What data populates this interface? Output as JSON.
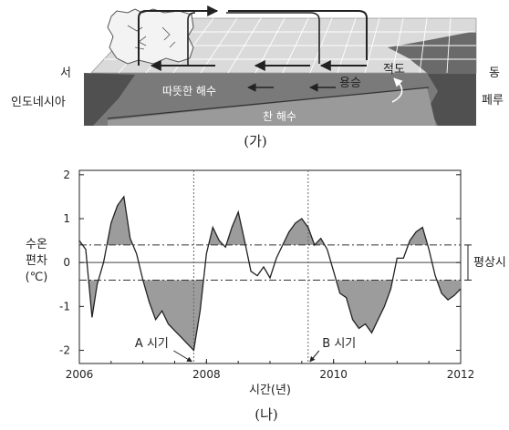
{
  "diagram": {
    "label_west": "서",
    "label_east": "동",
    "label_indonesia": "인도네시아",
    "label_peru": "페루",
    "label_equator": "적도",
    "label_upwelling": "용승",
    "label_warm_water": "따뜻한 해수",
    "label_cold_water": "찬 해수",
    "caption": "(가)"
  },
  "chart_data": {
    "type": "line",
    "x_label": "시간(년)",
    "y_label_lines": [
      "수온",
      "편차",
      "(℃)"
    ],
    "x_ticks": [
      "2006",
      "2008",
      "2010",
      "2012"
    ],
    "y_ticks": [
      "2",
      "1",
      "0",
      "-1",
      "-2"
    ],
    "xlim": [
      2006,
      2012
    ],
    "ylim": [
      -2.3,
      2.1
    ],
    "normal_band": [
      -0.4,
      0.4
    ],
    "normal_label": "평상시",
    "marker_a": {
      "x": 2007.8,
      "label": "A 시기"
    },
    "marker_b": {
      "x": 2009.6,
      "label": "B 시기"
    },
    "series": [
      {
        "x": [
          2006.0,
          2006.1,
          2006.2,
          2006.28,
          2006.38,
          2006.5,
          2006.6,
          2006.7,
          2006.8,
          2006.9,
          2007.0,
          2007.1,
          2007.2,
          2007.3,
          2007.4,
          2007.5,
          2007.6,
          2007.7,
          2007.8,
          2007.9,
          2008.0,
          2008.1,
          2008.2,
          2008.3,
          2008.4,
          2008.5,
          2008.6,
          2008.7,
          2008.8,
          2008.9,
          2009.0,
          2009.1,
          2009.2,
          2009.3,
          2009.4,
          2009.5,
          2009.6,
          2009.7,
          2009.8,
          2009.9,
          2010.0,
          2010.1,
          2010.2,
          2010.3,
          2010.4,
          2010.5,
          2010.6,
          2010.7,
          2010.8,
          2010.9,
          2011.0,
          2011.1,
          2011.2,
          2011.3,
          2011.4,
          2011.5,
          2011.6,
          2011.7,
          2011.8,
          2011.9,
          2012.0
        ],
        "y": [
          0.5,
          0.3,
          -1.25,
          -0.5,
          0.0,
          0.9,
          1.3,
          1.5,
          0.55,
          0.2,
          -0.4,
          -0.9,
          -1.3,
          -1.1,
          -1.4,
          -1.55,
          -1.7,
          -1.85,
          -2.0,
          -1.1,
          0.2,
          0.8,
          0.5,
          0.35,
          0.8,
          1.15,
          0.5,
          -0.2,
          -0.3,
          -0.1,
          -0.35,
          0.1,
          0.4,
          0.7,
          0.9,
          1.0,
          0.8,
          0.4,
          0.55,
          0.3,
          -0.2,
          -0.7,
          -0.8,
          -1.3,
          -1.5,
          -1.4,
          -1.6,
          -1.3,
          -1.0,
          -0.6,
          0.1,
          0.1,
          0.5,
          0.7,
          0.8,
          0.3,
          -0.3,
          -0.7,
          -0.85,
          -0.75,
          -0.6
        ]
      }
    ],
    "caption": "(나)"
  }
}
